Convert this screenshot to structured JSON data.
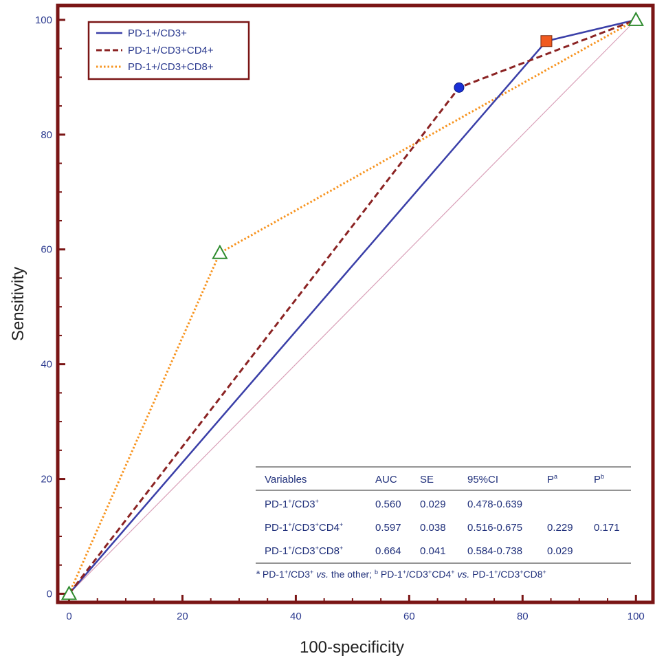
{
  "chart_data": {
    "type": "line",
    "title": "",
    "xlabel": "100-specificity",
    "ylabel": "Sensitivity",
    "xlim": [
      -2,
      103
    ],
    "ylim": [
      -1.5,
      102.5
    ],
    "xticks": [
      0,
      20,
      40,
      60,
      80,
      100
    ],
    "yticks": [
      0,
      20,
      40,
      60,
      80,
      100
    ],
    "grid": false,
    "legend": "top-left",
    "reference_line": {
      "x": [
        0,
        100
      ],
      "y": [
        0,
        100
      ],
      "color": "#d9a0b8"
    },
    "series": [
      {
        "name": "PD-1+/CD3+",
        "style": "solid",
        "color": "#3a3fa8",
        "x": [
          0,
          84.2,
          100
        ],
        "y": [
          0,
          96.3,
          100
        ],
        "markers": [
          {
            "x": 84.2,
            "y": 96.3,
            "shape": "square",
            "color": "#f15a1f"
          }
        ]
      },
      {
        "name": "PD-1+/CD3+CD4+",
        "style": "dashed",
        "color": "#8b2323",
        "x": [
          0,
          68.8,
          100
        ],
        "y": [
          0,
          88.2,
          100
        ],
        "markers": [
          {
            "x": 68.8,
            "y": 88.2,
            "shape": "circle",
            "color": "#1a2fd6"
          }
        ]
      },
      {
        "name": "PD-1+/CD3+CD8+",
        "style": "dotted",
        "color": "#f7931e",
        "x": [
          0,
          26.6,
          100
        ],
        "y": [
          0,
          59.4,
          100
        ],
        "markers": [
          {
            "x": 26.6,
            "y": 59.4,
            "shape": "triangle",
            "color": "#2e8b2e"
          }
        ]
      }
    ],
    "endpoint_markers": [
      {
        "x": 0,
        "y": 0,
        "shape": "triangle",
        "color": "#2e8b2e"
      },
      {
        "x": 100,
        "y": 100,
        "shape": "triangle",
        "color": "#2e8b2e"
      }
    ]
  },
  "table": {
    "headers": [
      "Variables",
      "AUC",
      "SE",
      "95%CI",
      "P",
      "P"
    ],
    "header_sups": [
      "",
      "",
      "",
      "",
      "a",
      "b"
    ],
    "rows": [
      {
        "base": "PD-1",
        "sup1": "+",
        "mid": "/CD3",
        "sup2": "+",
        "mid2": "",
        "sup3": "",
        "auc": "0.560",
        "se": "0.029",
        "ci": "0.478-0.639",
        "pa": "",
        "pb": ""
      },
      {
        "base": "PD-1",
        "sup1": "+",
        "mid": "/CD3",
        "sup2": "+",
        "mid2": "CD4",
        "sup3": "+",
        "auc": "0.597",
        "se": "0.038",
        "ci": "0.516-0.675",
        "pa": "0.229",
        "pb": "0.171"
      },
      {
        "base": "PD-1",
        "sup1": "+",
        "mid": "/CD3",
        "sup2": "+",
        "mid2": "CD8",
        "sup3": "+",
        "auc": "0.664",
        "se": "0.041",
        "ci": "0.584-0.738",
        "pa": "0.029",
        "pb": ""
      }
    ],
    "footnote": {
      "a": "a",
      "a_text1": " PD-1",
      "a_text2": "/CD3",
      "plus": "+",
      "vs": "vs.",
      "a_text3": " the other; ",
      "b": "b",
      "b_text1": " PD-1",
      "b_text2": "/CD3",
      "b_text3": "CD4",
      "b_text4": " PD-1",
      "b_text5": "/CD3",
      "b_text6": "CD8"
    }
  }
}
